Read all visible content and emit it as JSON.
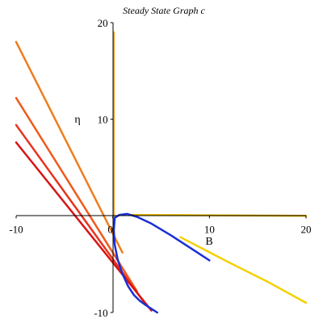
{
  "chart_data": {
    "type": "line",
    "title": "Steady State Graph c",
    "xlabel": "B",
    "ylabel": "η",
    "xlim": [
      -10,
      20
    ],
    "ylim": [
      -10,
      20
    ],
    "x_ticks": [
      -10,
      0,
      10,
      20
    ],
    "y_ticks": [
      -10,
      10,
      20
    ],
    "x_tick_labels": [
      "-10",
      "0",
      "10",
      "20"
    ],
    "y_tick_labels": [
      "-10",
      "10",
      "20"
    ],
    "grid": false,
    "series": [
      {
        "color": "#f07c1c",
        "x": [
          -10,
          1.0
        ],
        "y": [
          18.0,
          -3.8
        ]
      },
      {
        "color": "#f05a1c",
        "x": [
          -10,
          2.5
        ],
        "y": [
          12.2,
          -7.8
        ]
      },
      {
        "color": "#e8321c",
        "x": [
          -10,
          3.2
        ],
        "y": [
          9.4,
          -8.9
        ]
      },
      {
        "color": "#d81414",
        "x": [
          -10,
          4.0
        ],
        "y": [
          7.6,
          -9.8
        ]
      },
      {
        "color": "#f5a623",
        "x": [
          0.1,
          0.1
        ],
        "y": [
          -2.0,
          19.0
        ]
      },
      {
        "color": "#e8b800",
        "x": [
          2.0,
          20.0
        ],
        "y": [
          0.1,
          0.0
        ]
      },
      {
        "color": "#f5d000",
        "x": [
          7.0,
          12.0,
          16.0,
          20.0
        ],
        "y": [
          -2.2,
          -4.8,
          -6.8,
          -9.0
        ]
      },
      {
        "color": "#1a2fd6",
        "x": [
          10.0,
          8.0,
          6.0,
          4.0,
          2.5,
          1.5,
          0.7,
          0.2,
          0.1,
          0.2,
          0.5,
          1.0,
          1.6,
          2.2,
          2.8,
          3.5,
          4.6
        ],
        "y": [
          -4.6,
          -3.3,
          -2.0,
          -0.8,
          -0.1,
          0.2,
          0.1,
          -0.2,
          -1.5,
          -3.0,
          -4.5,
          -6.0,
          -7.3,
          -8.2,
          -8.8,
          -9.3,
          -10.0
        ]
      }
    ]
  }
}
